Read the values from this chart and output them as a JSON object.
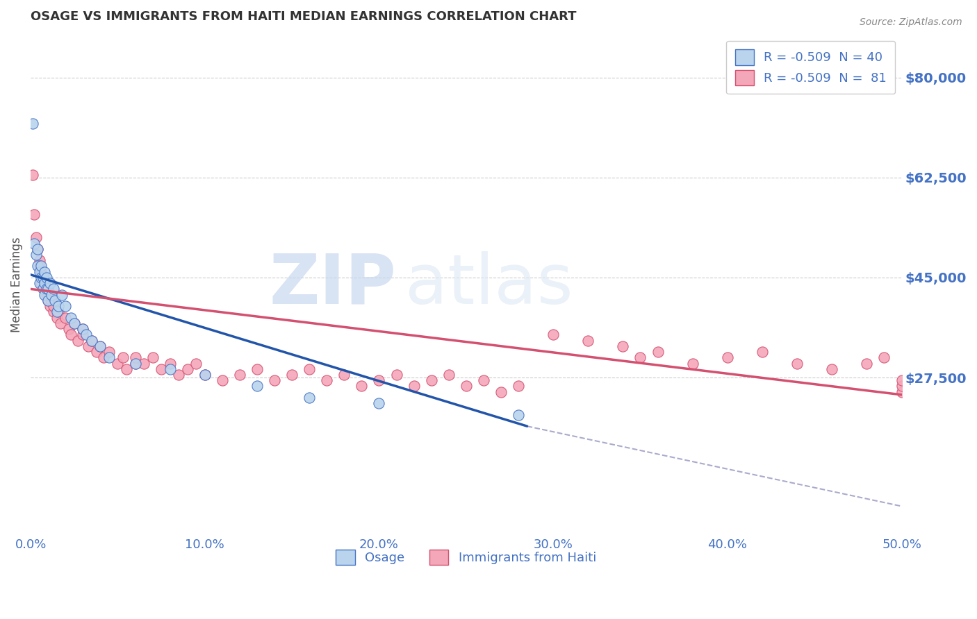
{
  "title": "OSAGE VS IMMIGRANTS FROM HAITI MEDIAN EARNINGS CORRELATION CHART",
  "source_text": "Source: ZipAtlas.com",
  "ylabel": "Median Earnings",
  "x_min": 0.0,
  "x_max": 0.5,
  "y_min": 0,
  "y_max": 87500,
  "y_ticks": [
    27500,
    45000,
    62500,
    80000
  ],
  "y_tick_labels": [
    "$27,500",
    "$45,000",
    "$62,500",
    "$80,000"
  ],
  "x_ticks": [
    0.0,
    0.1,
    0.2,
    0.3,
    0.4,
    0.5
  ],
  "x_tick_labels": [
    "0.0%",
    "10.0%",
    "20.0%",
    "30.0%",
    "40.0%",
    "50.0%"
  ],
  "background_color": "#ffffff",
  "grid_color": "#cccccc",
  "title_color": "#333333",
  "axis_color": "#4472c4",
  "series1_name": "Osage",
  "series1_color": "#bad4ed",
  "series1_edge_color": "#4472c4",
  "series1_line_color": "#2255aa",
  "series1_R": -0.509,
  "series1_N": 40,
  "series2_name": "Immigrants from Haiti",
  "series2_color": "#f4a7b9",
  "series2_edge_color": "#d45070",
  "series2_line_color": "#d45070",
  "series2_R": -0.509,
  "series2_N": 81,
  "legend_color": "#4472c4",
  "watermark_zip": "ZIP",
  "watermark_atlas": "atlas",
  "osage_x": [
    0.001,
    0.002,
    0.003,
    0.004,
    0.004,
    0.005,
    0.005,
    0.006,
    0.006,
    0.007,
    0.007,
    0.008,
    0.008,
    0.008,
    0.009,
    0.009,
    0.01,
    0.01,
    0.011,
    0.012,
    0.013,
    0.014,
    0.015,
    0.016,
    0.018,
    0.02,
    0.023,
    0.025,
    0.03,
    0.032,
    0.035,
    0.04,
    0.045,
    0.06,
    0.08,
    0.1,
    0.13,
    0.16,
    0.2,
    0.28
  ],
  "osage_y": [
    72000,
    51000,
    49000,
    47000,
    50000,
    44000,
    46000,
    45000,
    47000,
    43000,
    45000,
    44000,
    46000,
    42000,
    43000,
    45000,
    41000,
    43000,
    44000,
    42000,
    43000,
    41000,
    39000,
    40000,
    42000,
    40000,
    38000,
    37000,
    36000,
    35000,
    34000,
    33000,
    31000,
    30000,
    29000,
    28000,
    26000,
    24000,
    23000,
    21000
  ],
  "haiti_x": [
    0.001,
    0.002,
    0.003,
    0.004,
    0.005,
    0.005,
    0.006,
    0.006,
    0.007,
    0.008,
    0.008,
    0.009,
    0.009,
    0.01,
    0.01,
    0.011,
    0.012,
    0.013,
    0.013,
    0.015,
    0.016,
    0.017,
    0.02,
    0.022,
    0.023,
    0.025,
    0.027,
    0.03,
    0.03,
    0.033,
    0.035,
    0.038,
    0.04,
    0.042,
    0.045,
    0.05,
    0.053,
    0.055,
    0.06,
    0.06,
    0.065,
    0.07,
    0.075,
    0.08,
    0.085,
    0.09,
    0.095,
    0.1,
    0.11,
    0.12,
    0.13,
    0.14,
    0.15,
    0.16,
    0.17,
    0.18,
    0.19,
    0.2,
    0.21,
    0.22,
    0.23,
    0.24,
    0.25,
    0.26,
    0.27,
    0.28,
    0.3,
    0.32,
    0.34,
    0.35,
    0.36,
    0.38,
    0.4,
    0.42,
    0.44,
    0.46,
    0.48,
    0.49,
    0.5,
    0.5,
    0.5
  ],
  "haiti_y": [
    63000,
    56000,
    52000,
    50000,
    48000,
    47000,
    46000,
    44000,
    45000,
    43000,
    44000,
    42000,
    43000,
    41000,
    42000,
    40000,
    41000,
    39000,
    40000,
    38000,
    39000,
    37000,
    38000,
    36000,
    35000,
    37000,
    34000,
    35000,
    36000,
    33000,
    34000,
    32000,
    33000,
    31000,
    32000,
    30000,
    31000,
    29000,
    30000,
    31000,
    30000,
    31000,
    29000,
    30000,
    28000,
    29000,
    30000,
    28000,
    27000,
    28000,
    29000,
    27000,
    28000,
    29000,
    27000,
    28000,
    26000,
    27000,
    28000,
    26000,
    27000,
    28000,
    26000,
    27000,
    25000,
    26000,
    35000,
    34000,
    33000,
    31000,
    32000,
    30000,
    31000,
    32000,
    30000,
    29000,
    30000,
    31000,
    25000,
    26000,
    27000
  ],
  "osage_trend_x": [
    0.0,
    0.285
  ],
  "osage_trend_y": [
    45500,
    19000
  ],
  "haiti_trend_x": [
    0.0,
    0.5
  ],
  "haiti_trend_y": [
    43000,
    24500
  ],
  "dash_trend_x": [
    0.285,
    0.5
  ],
  "dash_trend_y": [
    19000,
    5000
  ]
}
